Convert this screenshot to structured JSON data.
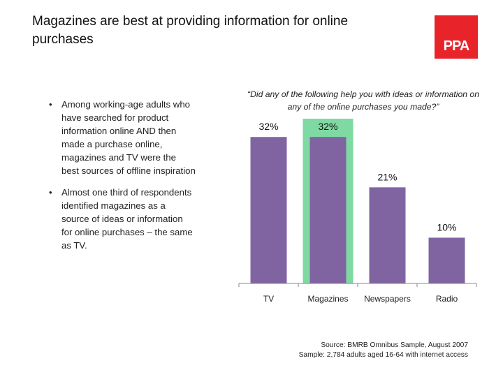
{
  "slide": {
    "title": "Magazines are best at providing information for online purchases",
    "logo_text": "PPA",
    "bullets": [
      "Among working-age adults who have searched for product information online AND then made a purchase online, magazines and TV were the best sources of offline inspiration",
      "Almost one third of respondents identified magazines as a source of ideas or information for online purchases – the same as TV."
    ],
    "source_line1": "Source: BMRB Omnibus Sample, August 2007",
    "source_line2": "Sample: 2,784 adults aged 16-64 with internet access"
  },
  "colors": {
    "bar": "#8064a2",
    "highlight": "#7fd9a3",
    "logo": "#e8232a"
  },
  "chart_data": {
    "type": "bar",
    "title": "“Did any of the following help you with ideas or information on any of the online purchases you made?”",
    "categories": [
      "TV",
      "Magazines",
      "Newspapers",
      "Radio"
    ],
    "values": [
      32,
      32,
      21,
      10
    ],
    "data_labels": [
      "32%",
      "32%",
      "21%",
      "10%"
    ],
    "highlight_category": "Magazines",
    "ylim": [
      0,
      36
    ],
    "grid": false,
    "xlabel": "",
    "ylabel": ""
  }
}
